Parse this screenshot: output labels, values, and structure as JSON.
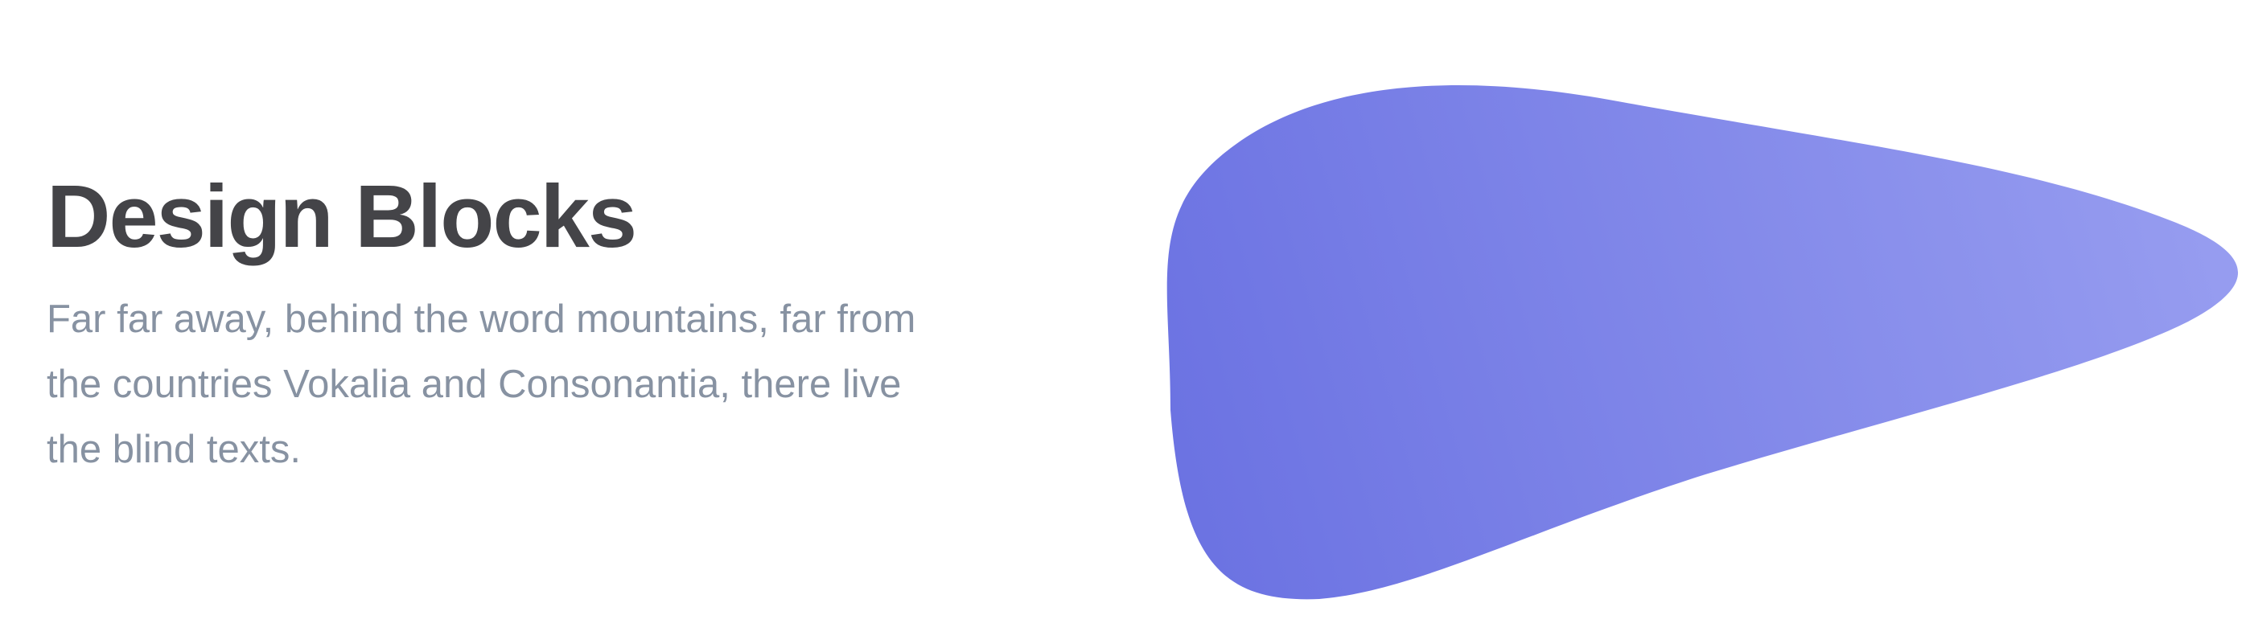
{
  "hero": {
    "title": "Design Blocks",
    "description": "Far far away, behind the word mountains, far from the countries Vokalia and Consonantia, there live the blind texts."
  },
  "colors": {
    "title": "#444448",
    "description": "#8792a2",
    "blob_gradient_start": "#6b72e2",
    "blob_gradient_end": "#979df0"
  }
}
